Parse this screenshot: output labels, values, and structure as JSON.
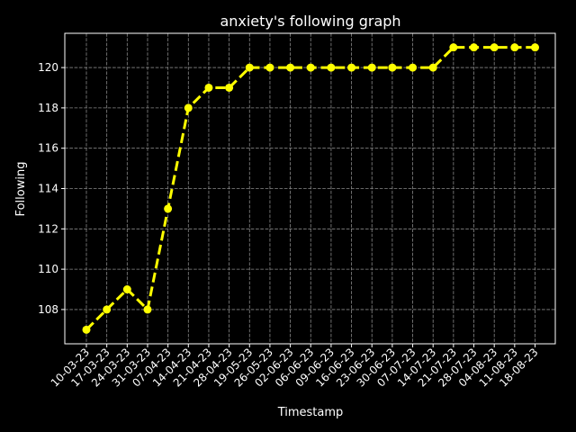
{
  "chart_data": {
    "type": "line",
    "title": "anxiety's following graph",
    "xlabel": "Timestamp",
    "ylabel": "Following",
    "categories": [
      "10-03-23",
      "17-03-23",
      "24-03-23",
      "31-03-23",
      "07-04-23",
      "14-04-23",
      "21-04-23",
      "28-04-23",
      "19-05-23",
      "26-05-23",
      "02-06-23",
      "06-06-23",
      "09-06-23",
      "16-06-23",
      "23-06-23",
      "30-06-23",
      "07-07-23",
      "14-07-23",
      "21-07-23",
      "28-07-23",
      "04-08-23",
      "11-08-23",
      "18-08-23"
    ],
    "series": [
      {
        "values": [
          107,
          108,
          109,
          108,
          113,
          118,
          119,
          119,
          120,
          120,
          120,
          120,
          120,
          120,
          120,
          120,
          120,
          120,
          121,
          121,
          121,
          121,
          121
        ]
      }
    ],
    "yticks": [
      108,
      110,
      112,
      114,
      116,
      118,
      120
    ],
    "ylim": [
      106.3,
      121.7
    ],
    "grid": true,
    "line_style": "dashed",
    "marker": "circle"
  },
  "colors": {
    "background": "#000000",
    "axes": "#ffffff",
    "grid": "#888888",
    "series": "#ffff00",
    "text": "#ffffff"
  }
}
